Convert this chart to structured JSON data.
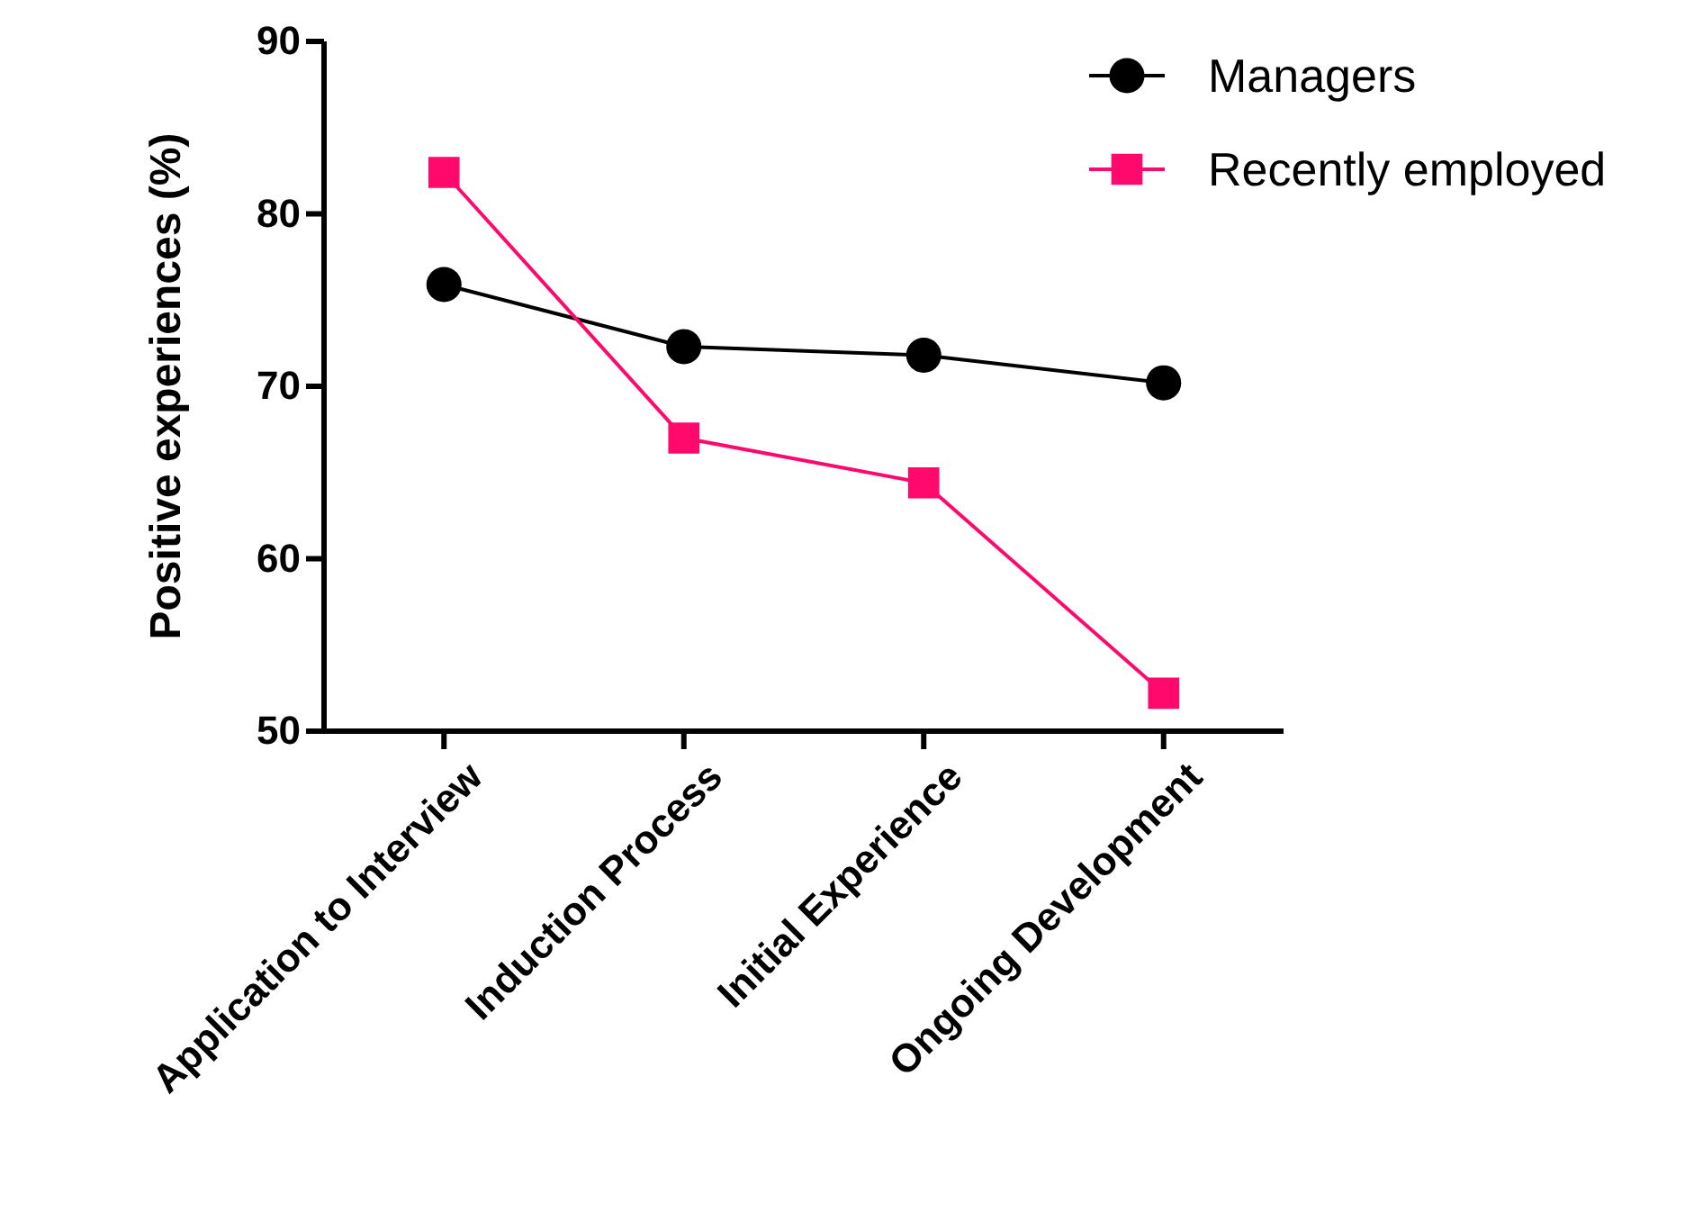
{
  "chart_data": {
    "type": "line",
    "ylabel": "Positive experiences (%)",
    "categories": [
      "Application to Interview",
      "Induction Process",
      "Initial Experience",
      "Ongoing Development"
    ],
    "series": [
      {
        "name": "Managers",
        "color": "#000000",
        "values": [
          75.9,
          72.3,
          71.8,
          70.2
        ],
        "marker": "circle"
      },
      {
        "name": "Recently employed",
        "color": "#ff0a6c",
        "values": [
          82.4,
          67.0,
          64.4,
          52.2
        ],
        "marker": "square"
      }
    ],
    "ylim": [
      50,
      90
    ],
    "yticks": [
      50,
      60,
      70,
      80,
      90
    ],
    "grid": false,
    "legend": "top right",
    "line_style": "solid"
  }
}
